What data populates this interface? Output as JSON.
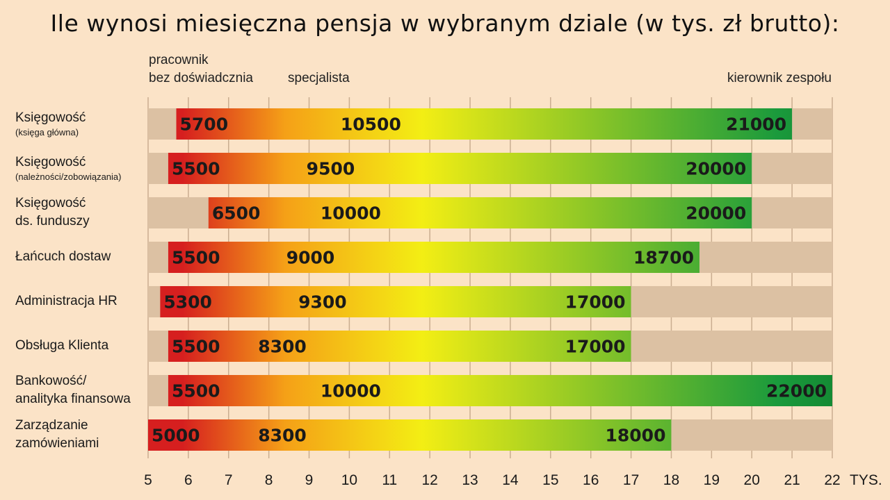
{
  "chart_data": {
    "type": "bar",
    "title": "Ile wynosi miesięczna pensja w wybranym dziale (w tys. zł brutto):",
    "unit_label": "TYS.",
    "xlim": [
      5,
      22
    ],
    "ticks": [
      "5",
      "6",
      "7",
      "8",
      "9",
      "10",
      "11",
      "12",
      "13",
      "14",
      "15",
      "16",
      "17",
      "18",
      "19",
      "20",
      "21",
      "22"
    ],
    "levels": [
      {
        "name": "pracownik",
        "name2": "bez doświadcznia"
      },
      {
        "name": "specjalista",
        "name2": ""
      },
      {
        "name": "kierownik zespołu",
        "name2": ""
      }
    ],
    "series_keys": [
      "pracownik bez doświadczenia",
      "specjalista",
      "kierownik zespołu"
    ],
    "colors": {
      "low": "#d61f1f",
      "mid": "#f3ee14",
      "high": "#1a9a3c",
      "track": "#dcc1a3"
    },
    "rows": [
      {
        "label": "Księgowość",
        "sub": "(księga główna)",
        "values": [
          5700,
          10500,
          21000
        ],
        "labels": [
          "5700",
          "10500",
          "21000"
        ]
      },
      {
        "label": "Księgowość",
        "sub": "(należności/zobowiązania)",
        "values": [
          5500,
          9500,
          20000
        ],
        "labels": [
          "5500",
          "9500",
          "20000"
        ]
      },
      {
        "label": "Księgowość",
        "label2": "ds. funduszy",
        "values": [
          6500,
          10000,
          20000
        ],
        "labels": [
          "6500",
          "10000",
          "20000"
        ]
      },
      {
        "label": "Łańcuch dostaw",
        "values": [
          5500,
          9000,
          18700
        ],
        "labels": [
          "5500",
          "9000",
          "18700"
        ]
      },
      {
        "label": "Administracja HR",
        "values": [
          5300,
          9300,
          17000
        ],
        "labels": [
          "5300",
          "9300",
          "17000"
        ]
      },
      {
        "label": "Obsługa Klienta",
        "values": [
          5500,
          8300,
          17000
        ],
        "labels": [
          "5500",
          "8300",
          "17000"
        ]
      },
      {
        "label": "Bankowość/",
        "label2": "analityka finansowa",
        "values": [
          5500,
          10000,
          22000
        ],
        "labels": [
          "5500",
          "10000",
          "22000"
        ]
      },
      {
        "label": "Zarządzanie",
        "label2": "zamówieniami",
        "values": [
          5000,
          8300,
          18000
        ],
        "labels": [
          "5000",
          "8300",
          "18000"
        ]
      }
    ]
  }
}
